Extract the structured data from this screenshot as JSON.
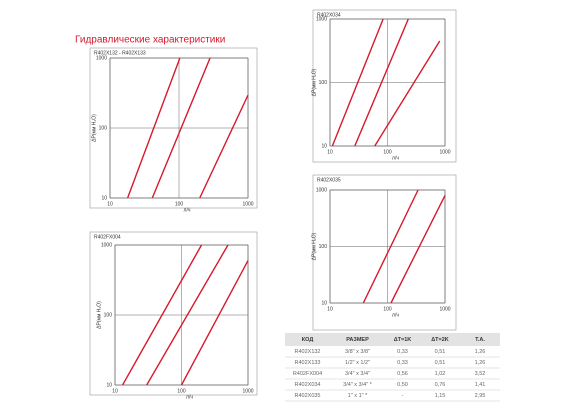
{
  "header": {
    "title": "Гидравлические характеристики"
  },
  "chart_data": [
    {
      "type": "line",
      "title": "R402X132 - R402X133",
      "x_label": "л/ч",
      "y_label": "ΔP(мм H₂O)",
      "log_x": true,
      "log_y": true,
      "grid": true,
      "xlim": [
        10,
        1000
      ],
      "ylim": [
        10,
        1000
      ],
      "xticks": [
        10,
        100,
        1000
      ],
      "yticks": [
        10,
        100,
        1000
      ],
      "series": [
        {
          "color": "#d7192d",
          "x": [
            18,
            103
          ],
          "values": [
            10,
            1000
          ]
        },
        {
          "color": "#d7192d",
          "x": [
            41,
            282
          ],
          "values": [
            10,
            1000
          ]
        },
        {
          "color": "#d7192d",
          "x": [
            200,
            1000
          ],
          "values": [
            10,
            295
          ]
        }
      ]
    },
    {
      "type": "line",
      "title": "R402X034",
      "x_label": "л/ч",
      "y_label": "ΔP(мм H₂O)",
      "log_x": true,
      "log_y": true,
      "grid": true,
      "xlim": [
        10,
        1000
      ],
      "ylim": [
        10,
        1000
      ],
      "xticks": [
        10,
        100,
        1000
      ],
      "yticks": [
        10,
        100,
        1000
      ],
      "series": [
        {
          "color": "#d7192d",
          "x": [
            11,
            84
          ],
          "values": [
            10,
            1000
          ]
        },
        {
          "color": "#d7192d",
          "x": [
            27,
            230
          ],
          "values": [
            10,
            1000
          ]
        },
        {
          "color": "#d7192d",
          "x": [
            60,
            810
          ],
          "values": [
            10,
            450
          ]
        }
      ]
    },
    {
      "type": "line",
      "title": "R402FX004",
      "x_label": "л/ч",
      "y_label": "ΔP(мм H₂O)",
      "log_x": true,
      "log_y": true,
      "grid": true,
      "xlim": [
        10,
        1000
      ],
      "ylim": [
        10,
        1000
      ],
      "xticks": [
        10,
        100,
        1000
      ],
      "yticks": [
        10,
        100,
        1000
      ],
      "series": [
        {
          "color": "#d7192d",
          "x": [
            13,
            200
          ],
          "values": [
            10,
            1000
          ]
        },
        {
          "color": "#d7192d",
          "x": [
            30,
            500
          ],
          "values": [
            10,
            1000
          ]
        },
        {
          "color": "#d7192d",
          "x": [
            100,
            1000
          ],
          "values": [
            10,
            600
          ]
        }
      ]
    },
    {
      "type": "line",
      "title": "R402X035",
      "x_label": "л/ч",
      "y_label": "ΔP(мм H₂O)",
      "log_x": true,
      "log_y": true,
      "grid": true,
      "xlim": [
        10,
        1000
      ],
      "ylim": [
        10,
        1000
      ],
      "xticks": [
        10,
        100,
        1000
      ],
      "yticks": [
        10,
        100,
        1000
      ],
      "series": [
        {
          "color": "#d7192d",
          "x": [
            38,
            340
          ],
          "values": [
            10,
            1000
          ]
        },
        {
          "color": "#d7192d",
          "x": [
            115,
            1000
          ],
          "values": [
            10,
            800
          ]
        }
      ]
    }
  ],
  "table": {
    "columns": [
      "КОД",
      "РАЗМЕР",
      "ΔT=1K",
      "ΔT=2K",
      "T.A."
    ],
    "rows": [
      [
        "R402X132",
        "3/8\" x 3/8\"",
        "0,33",
        "0,51",
        "1,26"
      ],
      [
        "R402X133",
        "1/2\" x 1/2\"",
        "0,33",
        "0,51",
        "1,26"
      ],
      [
        "R402FX004",
        "3/4\" x 3/4\"",
        "0,56",
        "1,02",
        "3,52"
      ],
      [
        "R402X034",
        "3/4\" x 3/4\" *",
        "0,50",
        "0,76",
        "1,41"
      ],
      [
        "R402X035",
        "1\" x 1\" *",
        "-",
        "1,15",
        "2,95"
      ]
    ]
  }
}
